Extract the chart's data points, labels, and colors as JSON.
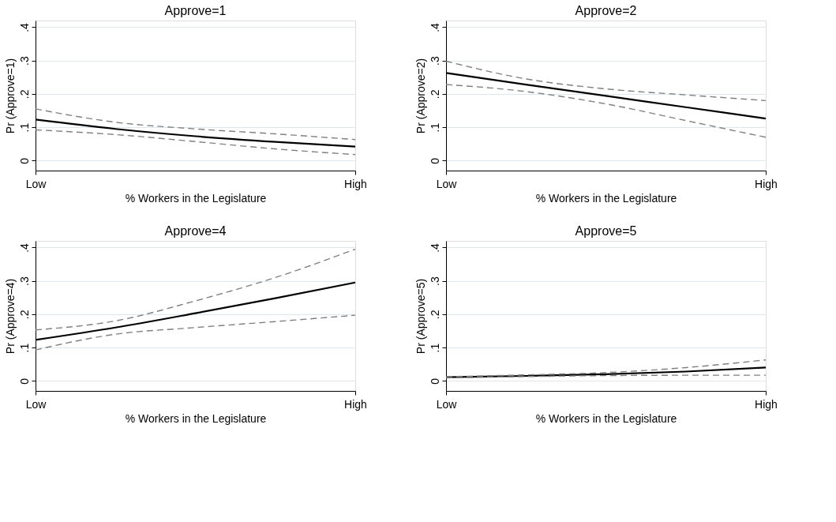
{
  "chart_data": [
    {
      "type": "line",
      "title": "Approve=1",
      "xlabel": "% Workers in the Legislature",
      "ylabel": "Pr (Approve=1)",
      "categories": [
        "Low",
        null,
        null,
        null,
        "High"
      ],
      "ylim": [
        -0.03,
        0.42
      ],
      "yticks": [
        {
          "value": 0,
          "label": "0"
        },
        {
          "value": 0.1,
          "label": ".1"
        },
        {
          "value": 0.2,
          "label": ".2"
        },
        {
          "value": 0.3,
          "label": ".3"
        },
        {
          "value": 0.4,
          "label": ".4"
        }
      ],
      "grid": "y",
      "series": [
        {
          "color": "#000000",
          "line_style": "solid",
          "values": [
            0.123,
            0.095,
            0.073,
            0.056,
            0.042
          ]
        },
        {
          "color": "#808080",
          "line_style": "dashed",
          "values": [
            0.155,
            0.115,
            0.095,
            0.08,
            0.063
          ]
        },
        {
          "color": "#808080",
          "line_style": "dashed",
          "values": [
            0.092,
            0.078,
            0.057,
            0.035,
            0.018
          ]
        }
      ]
    },
    {
      "type": "line",
      "title": "Approve=2",
      "xlabel": "% Workers in the Legislature",
      "ylabel": "Pr (Approve=2)",
      "categories": [
        "Low",
        null,
        null,
        null,
        "High"
      ],
      "ylim": [
        -0.03,
        0.42
      ],
      "yticks": [
        {
          "value": 0,
          "label": "0"
        },
        {
          "value": 0.1,
          "label": ".1"
        },
        {
          "value": 0.2,
          "label": ".2"
        },
        {
          "value": 0.3,
          "label": ".3"
        },
        {
          "value": 0.4,
          "label": ".4"
        }
      ],
      "grid": "y",
      "series": [
        {
          "color": "#000000",
          "line_style": "solid",
          "values": [
            0.263,
            0.228,
            0.194,
            0.16,
            0.126
          ]
        },
        {
          "color": "#808080",
          "line_style": "dashed",
          "values": [
            0.298,
            0.245,
            0.215,
            0.197,
            0.18
          ]
        },
        {
          "color": "#808080",
          "line_style": "dashed",
          "values": [
            0.228,
            0.207,
            0.17,
            0.12,
            0.07
          ]
        }
      ]
    },
    {
      "type": "line",
      "title": "Approve=4",
      "xlabel": "% Workers in the Legislature",
      "ylabel": "Pr (Approve=4)",
      "categories": [
        "Low",
        null,
        null,
        null,
        "High"
      ],
      "ylim": [
        -0.03,
        0.42
      ],
      "yticks": [
        {
          "value": 0,
          "label": "0"
        },
        {
          "value": 0.1,
          "label": ".1"
        },
        {
          "value": 0.2,
          "label": ".2"
        },
        {
          "value": 0.3,
          "label": ".3"
        },
        {
          "value": 0.4,
          "label": ".4"
        }
      ],
      "grid": "y",
      "series": [
        {
          "color": "#000000",
          "line_style": "solid",
          "values": [
            0.123,
            0.16,
            0.203,
            0.248,
            0.295
          ]
        },
        {
          "color": "#808080",
          "line_style": "dashed",
          "values": [
            0.153,
            0.18,
            0.24,
            0.31,
            0.395
          ]
        },
        {
          "color": "#808080",
          "line_style": "dashed",
          "values": [
            0.093,
            0.14,
            0.16,
            0.178,
            0.197
          ]
        }
      ]
    },
    {
      "type": "line",
      "title": "Approve=5",
      "xlabel": "% Workers in the Legislature",
      "ylabel": "Pr (Approve=5)",
      "categories": [
        "Low",
        null,
        null,
        null,
        "High"
      ],
      "ylim": [
        -0.03,
        0.42
      ],
      "yticks": [
        {
          "value": 0,
          "label": "0"
        },
        {
          "value": 0.1,
          "label": ".1"
        },
        {
          "value": 0.2,
          "label": ".2"
        },
        {
          "value": 0.3,
          "label": ".3"
        },
        {
          "value": 0.4,
          "label": ".4"
        }
      ],
      "grid": "y",
      "series": [
        {
          "color": "#000000",
          "line_style": "solid",
          "values": [
            0.011,
            0.015,
            0.02,
            0.028,
            0.04
          ]
        },
        {
          "color": "#808080",
          "line_style": "dashed",
          "values": [
            0.013,
            0.018,
            0.025,
            0.04,
            0.063
          ]
        },
        {
          "color": "#808080",
          "line_style": "dashed",
          "values": [
            0.009,
            0.013,
            0.016,
            0.017,
            0.017
          ]
        }
      ]
    }
  ]
}
